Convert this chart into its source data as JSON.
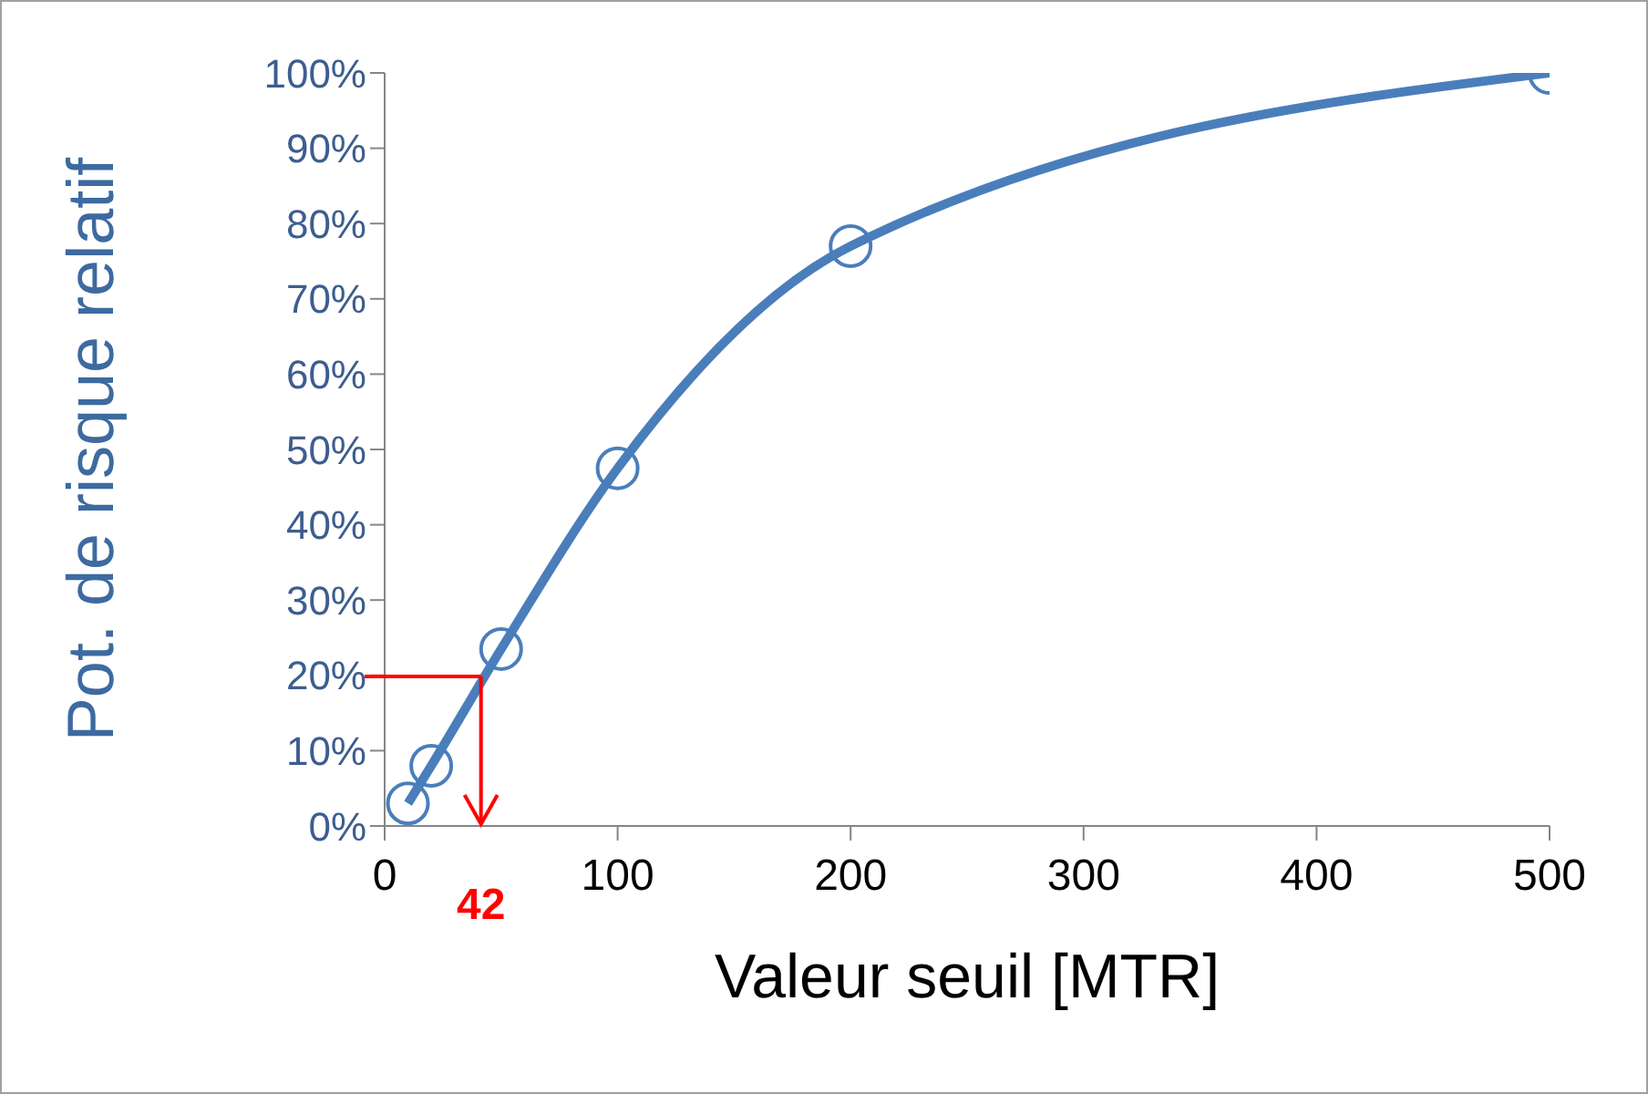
{
  "chart_data": {
    "type": "line",
    "xlabel": "Valeur seuil [MTR]",
    "ylabel": "Pot. de risque relatif",
    "x": [
      10,
      20,
      50,
      100,
      200,
      500
    ],
    "series": [
      {
        "color": "#4a7ebb",
        "values": [
          3,
          8,
          23.5,
          47.5,
          77,
          100
        ]
      }
    ],
    "xlim": [
      0,
      500
    ],
    "xticks": [
      0,
      100,
      200,
      300,
      400,
      500
    ],
    "ylim": [
      0,
      100
    ],
    "yticks": [
      {
        "value": 0,
        "label": "0%"
      },
      {
        "value": 10,
        "label": "10%"
      },
      {
        "value": 20,
        "label": "20%"
      },
      {
        "value": 30,
        "label": "30%"
      },
      {
        "value": 40,
        "label": "40%"
      },
      {
        "value": 50,
        "label": "50%"
      },
      {
        "value": 60,
        "label": "60%"
      },
      {
        "value": 70,
        "label": "70%"
      },
      {
        "value": 80,
        "label": "80%"
      },
      {
        "value": 90,
        "label": "90%"
      },
      {
        "value": 100,
        "label": "100%"
      }
    ],
    "annotations": [
      "42"
    ],
    "ref_lines": [
      {
        "axis": "y",
        "value": 20,
        "color": "#ff0000"
      },
      {
        "axis": "x",
        "value": 42,
        "color": "#ff0000"
      }
    ],
    "marker": "circle",
    "grid": false,
    "line_style": "solid"
  }
}
